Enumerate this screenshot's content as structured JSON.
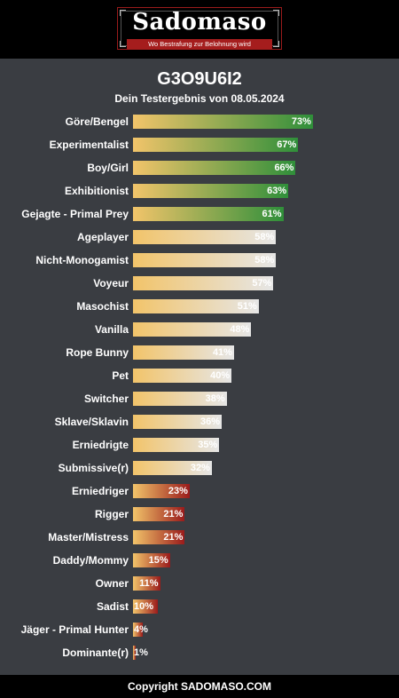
{
  "brand": {
    "logo_text": "Sadomaso",
    "slogan": "Wo Bestrafung zur Belohnung wird"
  },
  "result": {
    "title": "G3O9U6I2",
    "subtitle": "Dein Testergebnis von 08.05.2024"
  },
  "colors": {
    "bar_start": "#f2c46a",
    "high_end": "#2f8f3a",
    "mid_end": "#e6e6e6",
    "low_end": "#9a1b1b"
  },
  "chart_data": {
    "type": "bar",
    "orientation": "horizontal",
    "value_unit": "%",
    "xlim": [
      0,
      100
    ],
    "categories": [
      "Göre/Bengel",
      "Experimentalist",
      "Boy/Girl",
      "Exhibitionist",
      "Gejagte - Primal Prey",
      "Ageplayer",
      "Nicht-Monogamist",
      "Voyeur",
      "Masochist",
      "Vanilla",
      "Rope Bunny",
      "Pet",
      "Switcher",
      "Sklave/Sklavin",
      "Erniedrigte",
      "Submissive(r)",
      "Erniedriger",
      "Rigger",
      "Master/Mistress",
      "Daddy/Mommy",
      "Owner",
      "Sadist",
      "Jäger - Primal Hunter",
      "Dominante(r)"
    ],
    "values": [
      73,
      67,
      66,
      63,
      61,
      58,
      58,
      57,
      51,
      48,
      41,
      40,
      38,
      36,
      35,
      32,
      23,
      21,
      21,
      15,
      11,
      10,
      4,
      1
    ],
    "value_labels": [
      "73%",
      "67%",
      "66%",
      "63%",
      "61%",
      "58%",
      "58%",
      "57%",
      "51%",
      "48%",
      "41%",
      "40%",
      "38%",
      "36%",
      "35%",
      "32%",
      "23%",
      "21%",
      "21%",
      "15%",
      "11%",
      "10%",
      "4%",
      "1%"
    ],
    "color_groups": [
      "high",
      "high",
      "high",
      "high",
      "high",
      "mid",
      "mid",
      "mid",
      "mid",
      "mid",
      "mid",
      "mid",
      "mid",
      "mid",
      "mid",
      "mid",
      "low",
      "low",
      "low",
      "low",
      "low",
      "low",
      "low",
      "low"
    ]
  },
  "footer": {
    "copyright": "Copyright SADOMASO.COM"
  }
}
